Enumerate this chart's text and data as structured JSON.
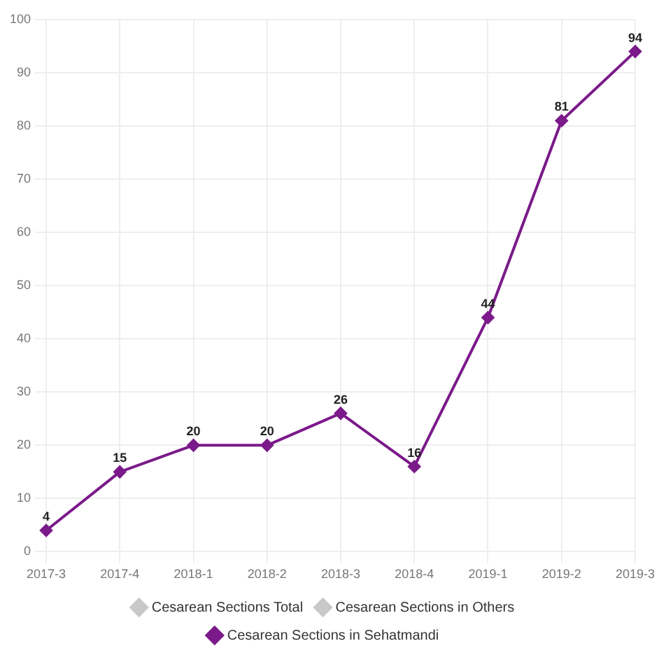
{
  "chart_data": {
    "type": "line",
    "categories": [
      "2017-3",
      "2017-4",
      "2018-1",
      "2018-2",
      "2018-3",
      "2018-4",
      "2019-1",
      "2019-2",
      "2019-3"
    ],
    "series": [
      {
        "name": "Cesarean Sections Total",
        "color": "#c8c8c8",
        "values": [
          null,
          null,
          null,
          null,
          null,
          null,
          null,
          null,
          null
        ]
      },
      {
        "name": "Cesarean Sections in Others",
        "color": "#c8c8c8",
        "values": [
          null,
          null,
          null,
          null,
          null,
          null,
          null,
          null,
          null
        ]
      },
      {
        "name": "Cesarean Sections in Sehatmandi",
        "color": "#7b1a8a",
        "values": [
          4,
          15,
          20,
          20,
          26,
          16,
          44,
          81,
          94
        ]
      }
    ],
    "ylim": [
      0,
      100
    ],
    "yticks": [
      0,
      10,
      20,
      30,
      40,
      50,
      60,
      70,
      80,
      90,
      100
    ],
    "grid": true,
    "legend": "bottom",
    "marker": "diamond",
    "line_style": "solid",
    "data_labels": true
  }
}
